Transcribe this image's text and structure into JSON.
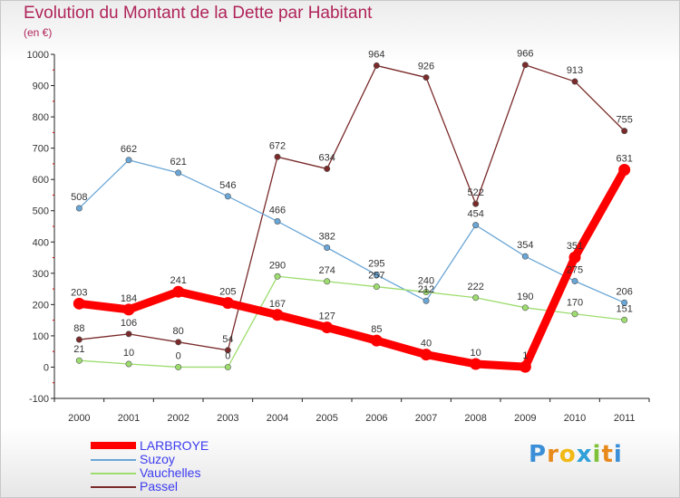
{
  "header": {
    "title": "Evolution du Montant de la Dette par Habitant",
    "subtitle": "(en €)"
  },
  "logo": {
    "letters": [
      "P",
      "r",
      "o",
      "x",
      "i",
      "t",
      "i"
    ],
    "colors": [
      "#3a8fd8",
      "#e8891c",
      "#f2b814",
      "#2fa0d8",
      "#7fc23a",
      "#e8891c",
      "#3a8fd8"
    ]
  },
  "chart_data": {
    "type": "line",
    "x": [
      "2000",
      "2001",
      "2002",
      "2003",
      "2004",
      "2005",
      "2006",
      "2007",
      "2008",
      "2009",
      "2010",
      "2011"
    ],
    "ylim": [
      -100,
      1000
    ],
    "yticks": [
      "-100",
      "0",
      "100",
      "200",
      "300",
      "400",
      "500",
      "600",
      "700",
      "800",
      "900",
      "1000"
    ],
    "grid": false,
    "legend_position": "bottom-left",
    "series": [
      {
        "name": "LARBROYE",
        "color": "#ff0000",
        "values": [
          203,
          184,
          241,
          205,
          167,
          127,
          85,
          40,
          10,
          1,
          351,
          631
        ],
        "labels": [
          "203",
          "184",
          "241",
          "205",
          "167",
          "127",
          "85",
          "40",
          "10",
          "1",
          "351",
          "631"
        ]
      },
      {
        "name": "Suzoy",
        "color": "#6aa6d6",
        "values": [
          508,
          662,
          621,
          546,
          466,
          382,
          295,
          212,
          454,
          354,
          275,
          206
        ],
        "labels": [
          "508",
          "662",
          "621",
          "546",
          "466",
          "382",
          "295",
          "212",
          "454",
          "354",
          "275",
          "206"
        ]
      },
      {
        "name": "Vauchelles",
        "color": "#9ddc6e",
        "values": [
          21,
          10,
          0,
          0,
          290,
          274,
          257,
          240,
          222,
          190,
          170,
          151
        ],
        "labels": [
          "21",
          "10",
          "0",
          "0",
          "290",
          "274",
          "257",
          "240",
          "222",
          "190",
          "170",
          "151"
        ]
      },
      {
        "name": "Passel",
        "color": "#7a2a2a",
        "values": [
          88,
          106,
          80,
          54,
          672,
          634,
          964,
          926,
          522,
          966,
          913,
          755
        ],
        "labels": [
          "88",
          "106",
          "80",
          "54",
          "672",
          "634",
          "964",
          "926",
          "522",
          "966",
          "913",
          "755"
        ]
      }
    ]
  }
}
